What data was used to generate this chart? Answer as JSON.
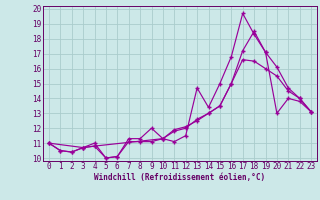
{
  "xlabel": "Windchill (Refroidissement éolien,°C)",
  "bg_color": "#cce8e8",
  "line_color": "#990099",
  "grid_color": "#aacccc",
  "text_color": "#660066",
  "spine_color": "#660066",
  "xlim": [
    -0.5,
    23.5
  ],
  "ylim": [
    9.8,
    20.2
  ],
  "xticks": [
    0,
    1,
    2,
    3,
    4,
    5,
    6,
    7,
    8,
    9,
    10,
    11,
    12,
    13,
    14,
    15,
    16,
    17,
    18,
    19,
    20,
    21,
    22,
    23
  ],
  "yticks": [
    10,
    11,
    12,
    13,
    14,
    15,
    16,
    17,
    18,
    19,
    20
  ],
  "series1_x": [
    0,
    1,
    2,
    3,
    4,
    5,
    6,
    7,
    8,
    9,
    10,
    11,
    12,
    13,
    14,
    15,
    16,
    17,
    18,
    19,
    20,
    21,
    22,
    23
  ],
  "series1_y": [
    11,
    10.5,
    10.4,
    10.7,
    10.8,
    10.0,
    10.1,
    11.1,
    11.1,
    11.1,
    11.3,
    11.9,
    12.1,
    12.5,
    13.0,
    13.5,
    15.0,
    16.6,
    16.5,
    16.0,
    15.5,
    14.5,
    14.0,
    13.1
  ],
  "series2_x": [
    0,
    1,
    2,
    3,
    4,
    5,
    6,
    7,
    8,
    9,
    10,
    11,
    12,
    13,
    14,
    15,
    16,
    17,
    18,
    19,
    20,
    21,
    22,
    23
  ],
  "series2_y": [
    11,
    10.5,
    10.4,
    10.7,
    11.0,
    10.0,
    10.1,
    11.3,
    11.3,
    12.0,
    11.3,
    11.1,
    11.5,
    14.7,
    13.4,
    15.0,
    16.8,
    19.7,
    18.3,
    17.1,
    13.0,
    14.0,
    13.8,
    13.1
  ],
  "series3_x": [
    0,
    3,
    4,
    10,
    11,
    12,
    13,
    14,
    15,
    16,
    17,
    18,
    19,
    20,
    21,
    22,
    23
  ],
  "series3_y": [
    11,
    10.7,
    10.8,
    11.3,
    11.8,
    12.0,
    12.6,
    13.0,
    13.5,
    15.0,
    17.2,
    18.5,
    17.1,
    16.1,
    14.7,
    14.0,
    13.1
  ],
  "tick_fontsize": 5.5,
  "xlabel_fontsize": 5.5,
  "linewidth": 0.85,
  "markersize": 3.5
}
